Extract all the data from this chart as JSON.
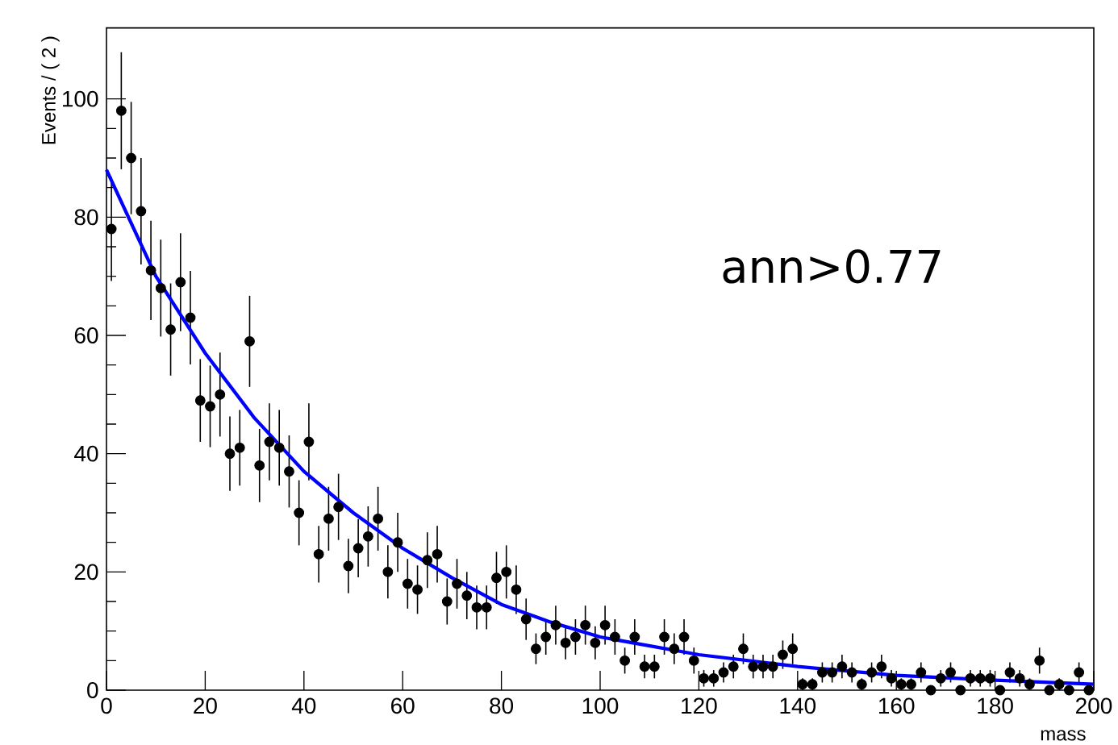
{
  "chart_data": {
    "type": "scatter",
    "xlabel": "mass",
    "ylabel": "Events / ( 2 )",
    "annotations": [
      "ann>0.77"
    ],
    "xlim": [
      0,
      200
    ],
    "ylim": [
      0,
      112
    ],
    "xticks": [
      0,
      20,
      40,
      60,
      80,
      100,
      120,
      140,
      160,
      180,
      200
    ],
    "yticks": [
      0,
      20,
      40,
      60,
      80,
      100
    ],
    "series": [
      {
        "marker": "circle",
        "color": "#000000",
        "x": [
          1,
          3,
          5,
          7,
          9,
          11,
          13,
          15,
          17,
          19,
          21,
          23,
          25,
          27,
          29,
          31,
          33,
          35,
          37,
          39,
          41,
          43,
          45,
          47,
          49,
          51,
          53,
          55,
          57,
          59,
          61,
          63,
          65,
          67,
          69,
          71,
          73,
          75,
          77,
          79,
          81,
          83,
          85,
          87,
          89,
          91,
          93,
          95,
          97,
          99,
          101,
          103,
          105,
          107,
          109,
          111,
          113,
          115,
          117,
          119,
          121,
          123,
          125,
          127,
          129,
          131,
          133,
          135,
          137,
          139,
          141,
          143,
          145,
          147,
          149,
          151,
          153,
          155,
          157,
          159,
          161,
          163,
          165,
          167,
          169,
          171,
          173,
          175,
          177,
          179,
          181,
          183,
          185,
          187,
          189,
          191,
          193,
          195,
          197,
          199
        ],
        "values": [
          78,
          98,
          90,
          81,
          71,
          68,
          61,
          69,
          63,
          49,
          48,
          50,
          40,
          41,
          59,
          38,
          42,
          41,
          37,
          30,
          42,
          23,
          29,
          31,
          21,
          24,
          26,
          29,
          20,
          25,
          18,
          17,
          22,
          23,
          15,
          18,
          16,
          14,
          14,
          19,
          20,
          17,
          12,
          7,
          9,
          11,
          8,
          9,
          11,
          8,
          11,
          9,
          5,
          9,
          4,
          4,
          9,
          7,
          9,
          5,
          2,
          2,
          3,
          4,
          7,
          4,
          4,
          4,
          6,
          7,
          1,
          1,
          3,
          3,
          4,
          3,
          1,
          3,
          4,
          2,
          1,
          1,
          3,
          0,
          2,
          3,
          0,
          2,
          2,
          2,
          0,
          3,
          2,
          1,
          5,
          0,
          1,
          0,
          3,
          0
        ],
        "errors": [
          8.8,
          9.9,
          9.5,
          9,
          8.4,
          8.2,
          7.8,
          8.3,
          7.9,
          7,
          6.9,
          7.1,
          6.3,
          6.4,
          7.7,
          6.2,
          6.5,
          6.4,
          6.1,
          5.5,
          6.5,
          4.8,
          5.4,
          5.6,
          4.6,
          4.9,
          5.1,
          5.4,
          4.5,
          5,
          4.2,
          4.1,
          4.7,
          4.8,
          3.9,
          4.2,
          4,
          3.7,
          3.7,
          4.4,
          4.5,
          4.1,
          3.5,
          2.6,
          3,
          3.3,
          2.8,
          3,
          3.3,
          2.8,
          3.3,
          3,
          2.2,
          3,
          2,
          2,
          3,
          2.6,
          3,
          2.2,
          1.4,
          1.4,
          1.7,
          2,
          2.6,
          2,
          2,
          2,
          2.4,
          2.6,
          1,
          1,
          1.7,
          1.7,
          2,
          1.7,
          1,
          1.7,
          2,
          1.4,
          1,
          1,
          1.7,
          null,
          1.4,
          1.7,
          null,
          1.4,
          1.4,
          1.4,
          null,
          1.7,
          1.4,
          1,
          2.2,
          null,
          1,
          null,
          1.7,
          null
        ]
      },
      {
        "type": "line",
        "marker": "none",
        "color": "#0000ff",
        "x": [
          0,
          10,
          20,
          30,
          40,
          50,
          60,
          70,
          80,
          90,
          100,
          120,
          140,
          160,
          180,
          200
        ],
        "values": [
          88,
          70,
          57,
          46,
          37,
          30,
          24,
          19,
          14.5,
          11.5,
          9,
          6,
          4,
          2.5,
          1.7,
          1
        ]
      }
    ]
  }
}
